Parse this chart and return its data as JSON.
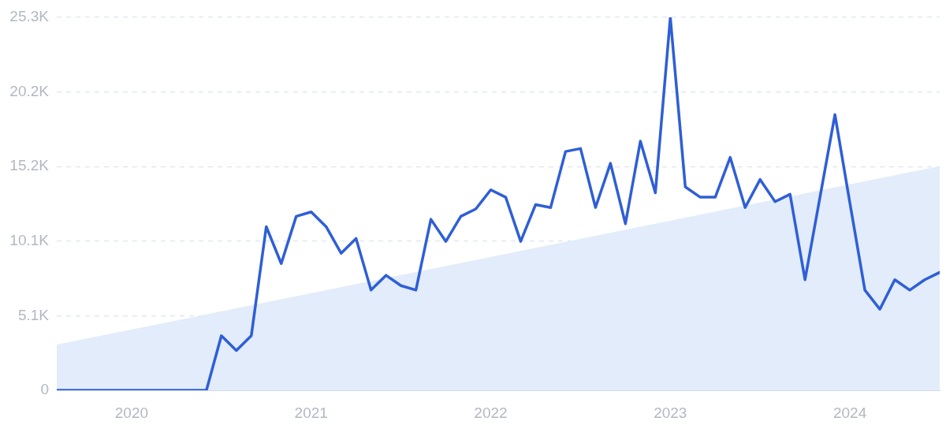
{
  "chart_data": {
    "type": "line",
    "x": [
      "2019-08",
      "2019-09",
      "2019-10",
      "2019-11",
      "2019-12",
      "2020-01",
      "2020-02",
      "2020-03",
      "2020-04",
      "2020-05",
      "2020-06",
      "2020-07",
      "2020-08",
      "2020-09",
      "2020-10",
      "2020-11",
      "2020-12",
      "2021-01",
      "2021-02",
      "2021-03",
      "2021-04",
      "2021-05",
      "2021-06",
      "2021-07",
      "2021-08",
      "2021-09",
      "2021-10",
      "2021-11",
      "2021-12",
      "2022-01",
      "2022-02",
      "2022-03",
      "2022-04",
      "2022-05",
      "2022-06",
      "2022-07",
      "2022-08",
      "2022-09",
      "2022-10",
      "2022-11",
      "2022-12",
      "2023-01",
      "2023-02",
      "2023-03",
      "2023-04",
      "2023-05",
      "2023-06",
      "2023-07",
      "2023-08",
      "2023-09",
      "2023-10",
      "2023-11",
      "2023-12",
      "2024-01",
      "2024-02",
      "2024-03",
      "2024-04",
      "2024-05",
      "2024-06",
      "2024-07"
    ],
    "series": [
      {
        "type": "area",
        "color": "#e2ecfb",
        "x": [
          "2019-08",
          "2024-07"
        ],
        "values": [
          3100,
          15200
        ]
      },
      {
        "color": "#2f5fd6",
        "values": [
          0,
          0,
          0,
          0,
          0,
          0,
          0,
          0,
          0,
          0,
          0,
          3700,
          2700,
          3700,
          11100,
          8600,
          11800,
          12100,
          11100,
          9300,
          10300,
          6800,
          7800,
          7100,
          6800,
          11600,
          10100,
          11800,
          12300,
          13600,
          13100,
          10100,
          12600,
          12400,
          16200,
          16400,
          12400,
          15400,
          11300,
          16900,
          13400,
          25300,
          13800,
          13100,
          13100,
          15800,
          12400,
          14300,
          12800,
          13300,
          7500,
          13100,
          18700,
          12700,
          6800,
          5500,
          7500,
          6800,
          7500,
          8000
        ]
      }
    ],
    "xlim": [
      "2019-08",
      "2024-07"
    ],
    "xticks": [
      {
        "value": "2020-01",
        "label": "2020"
      },
      {
        "value": "2021-01",
        "label": "2021"
      },
      {
        "value": "2022-01",
        "label": "2022"
      },
      {
        "value": "2023-01",
        "label": "2023"
      },
      {
        "value": "2024-01",
        "label": "2024"
      }
    ],
    "ylim": [
      0,
      25300
    ],
    "yticks": [
      0,
      {
        "value": 5060,
        "label": "5.1K"
      },
      {
        "value": 10120,
        "label": "10.1K"
      },
      {
        "value": 15180,
        "label": "15.2K"
      },
      {
        "value": 20240,
        "label": "20.2K"
      },
      {
        "value": 25300,
        "label": "25.3K"
      }
    ],
    "grid": "y",
    "legend": false,
    "marker": "none",
    "line_style": "solid"
  }
}
